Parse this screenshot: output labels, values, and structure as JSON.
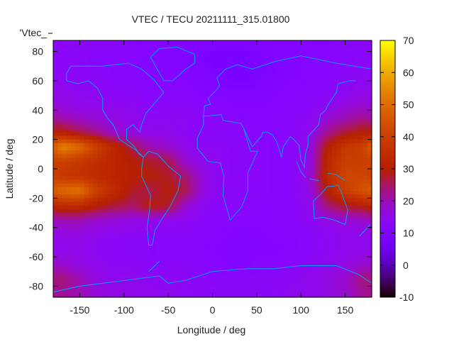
{
  "chart_data": {
    "type": "heatmap",
    "title": "VTEC / TECU 20211111_315.01800",
    "xlabel": "Longitude / deg",
    "ylabel": "Latitude / deg",
    "legend_key": "'Vtec_",
    "xlim": [
      -180,
      180
    ],
    "ylim": [
      -87.5,
      87.5
    ],
    "xticks": [
      -150,
      -100,
      -50,
      0,
      50,
      100,
      150
    ],
    "yticks": [
      -80,
      -60,
      -40,
      -20,
      0,
      20,
      40,
      60,
      80
    ],
    "colorbar": {
      "range": [
        -10,
        70
      ],
      "ticks": [
        -10,
        0,
        10,
        20,
        30,
        40,
        50,
        60,
        70
      ],
      "palette": "black-blue-violet-red-orange-yellow"
    },
    "coastline_color": "#00a0ff",
    "grid_lon": [
      -170,
      -150,
      -130,
      -110,
      -90,
      -70,
      -50,
      -30,
      -10,
      10,
      30,
      50,
      70,
      90,
      110,
      130,
      150,
      170
    ],
    "grid_lat": [
      85,
      75,
      65,
      55,
      45,
      35,
      25,
      15,
      5,
      -5,
      -15,
      -25,
      -35,
      -45,
      -55,
      -65,
      -75,
      -85
    ],
    "values": [
      [
        14,
        14,
        13,
        13,
        12,
        12,
        11,
        11,
        10,
        10,
        10,
        10,
        11,
        11,
        12,
        12,
        13,
        13
      ],
      [
        13,
        13,
        12,
        12,
        12,
        11,
        11,
        10,
        9,
        8,
        8,
        9,
        10,
        11,
        12,
        12,
        12,
        13
      ],
      [
        14,
        13,
        13,
        12,
        12,
        12,
        11,
        11,
        10,
        9,
        8,
        9,
        10,
        11,
        12,
        12,
        13,
        14
      ],
      [
        15,
        14,
        14,
        13,
        13,
        12,
        12,
        12,
        11,
        10,
        10,
        10,
        11,
        12,
        12,
        13,
        14,
        15
      ],
      [
        16,
        15,
        15,
        14,
        14,
        13,
        13,
        13,
        12,
        12,
        11,
        11,
        12,
        12,
        13,
        14,
        16,
        17
      ],
      [
        20,
        18,
        17,
        16,
        15,
        14,
        14,
        14,
        13,
        13,
        12,
        12,
        12,
        13,
        14,
        17,
        20,
        22
      ],
      [
        30,
        26,
        22,
        18,
        16,
        15,
        15,
        14,
        13,
        13,
        13,
        12,
        12,
        13,
        15,
        22,
        27,
        30
      ],
      [
        55,
        50,
        40,
        32,
        26,
        20,
        18,
        15,
        14,
        14,
        13,
        13,
        12,
        13,
        16,
        30,
        38,
        40
      ],
      [
        40,
        38,
        35,
        32,
        30,
        28,
        26,
        18,
        15,
        14,
        13,
        13,
        12,
        13,
        16,
        33,
        40,
        40
      ],
      [
        38,
        36,
        34,
        32,
        30,
        30,
        28,
        24,
        16,
        14,
        13,
        13,
        12,
        13,
        17,
        34,
        42,
        42
      ],
      [
        50,
        52,
        40,
        34,
        28,
        26,
        30,
        26,
        16,
        14,
        13,
        13,
        12,
        13,
        16,
        30,
        40,
        45
      ],
      [
        35,
        34,
        30,
        27,
        25,
        30,
        28,
        18,
        14,
        13,
        13,
        12,
        12,
        13,
        15,
        24,
        28,
        30
      ],
      [
        20,
        20,
        18,
        17,
        16,
        16,
        15,
        14,
        13,
        12,
        12,
        12,
        12,
        13,
        14,
        16,
        17,
        18
      ],
      [
        16,
        16,
        15,
        14,
        14,
        13,
        13,
        13,
        12,
        12,
        11,
        11,
        12,
        12,
        13,
        14,
        15,
        15
      ],
      [
        15,
        15,
        14,
        13,
        13,
        13,
        12,
        12,
        12,
        11,
        10,
        11,
        11,
        12,
        13,
        14,
        15,
        15
      ],
      [
        18,
        16,
        15,
        14,
        14,
        13,
        13,
        13,
        12,
        12,
        11,
        12,
        12,
        13,
        14,
        15,
        16,
        18
      ],
      [
        24,
        20,
        16,
        15,
        15,
        14,
        14,
        14,
        13,
        13,
        13,
        13,
        13,
        14,
        15,
        16,
        18,
        24
      ],
      [
        22,
        20,
        17,
        16,
        15,
        15,
        15,
        14,
        14,
        14,
        14,
        14,
        14,
        15,
        15,
        16,
        18,
        22
      ]
    ]
  }
}
